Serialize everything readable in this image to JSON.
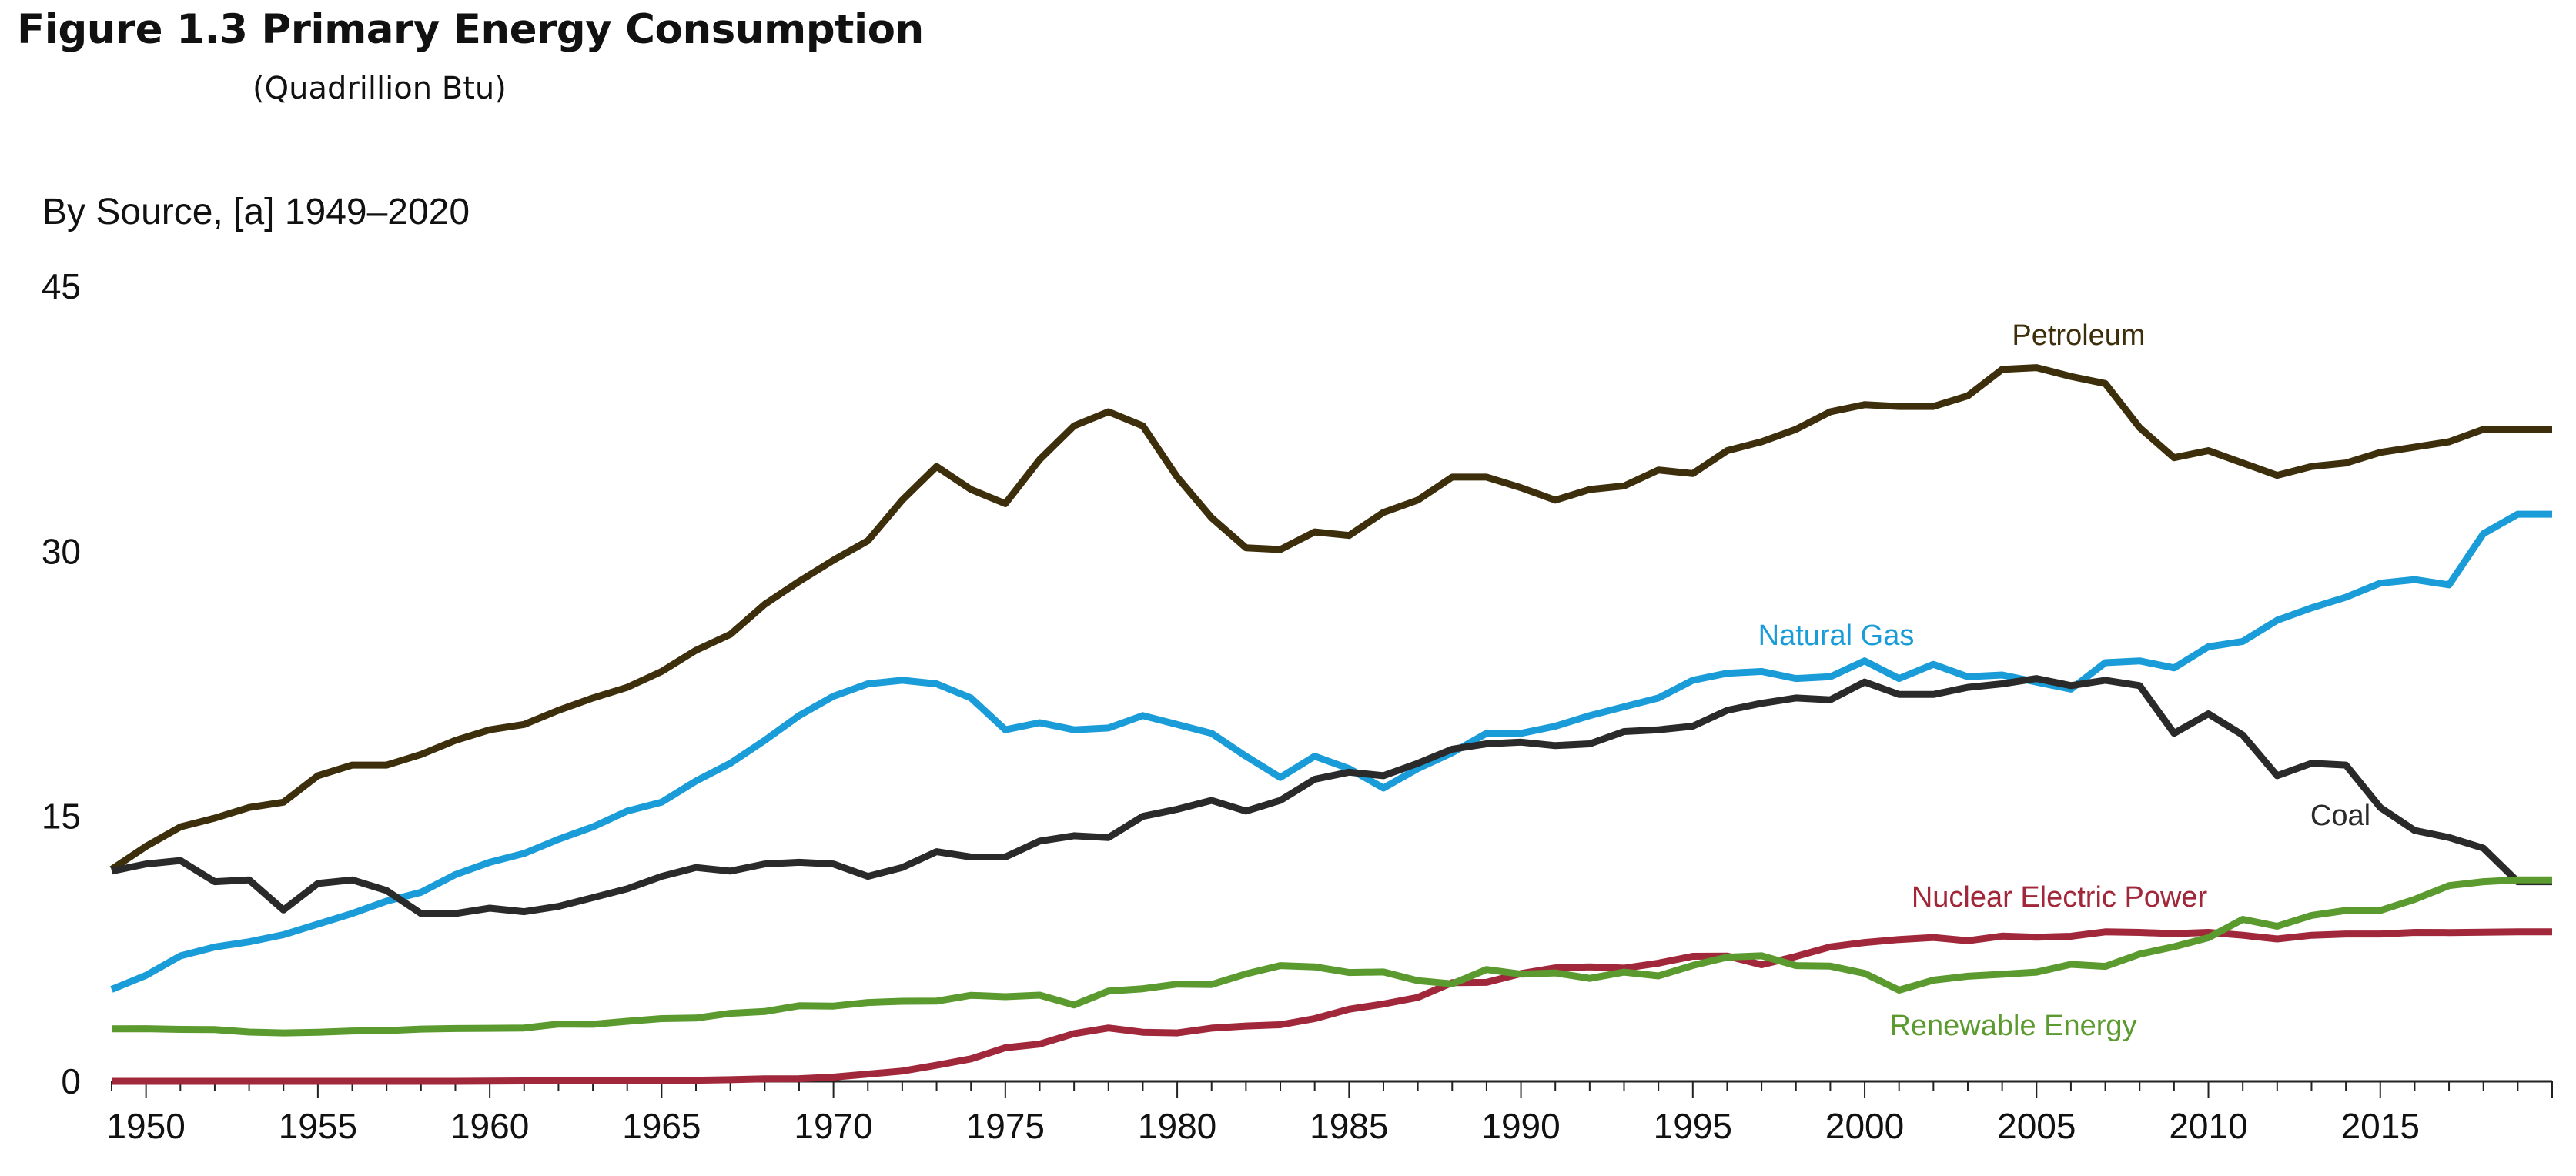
{
  "figure": {
    "title": "Figure 1.3  Primary Energy Consumption",
    "units": "(Quadrillion Btu)"
  },
  "chart_data": {
    "type": "line",
    "subtitle": "By Source, [a] 1949–2020",
    "x": [
      1949,
      1950,
      1951,
      1952,
      1953,
      1954,
      1955,
      1956,
      1957,
      1958,
      1959,
      1960,
      1961,
      1962,
      1963,
      1964,
      1965,
      1966,
      1967,
      1968,
      1969,
      1970,
      1971,
      1972,
      1973,
      1974,
      1975,
      1976,
      1977,
      1978,
      1979,
      1980,
      1981,
      1982,
      1983,
      1984,
      1985,
      1986,
      1987,
      1988,
      1989,
      1990,
      1991,
      1992,
      1993,
      1994,
      1995,
      1996,
      1997,
      1998,
      1999,
      2000,
      2001,
      2002,
      2003,
      2004,
      2005,
      2006,
      2007,
      2008,
      2009,
      2010,
      2011,
      2012,
      2013,
      2014,
      2015,
      2016,
      2017,
      2018,
      2019,
      2020
    ],
    "xlim": [
      1949,
      2020
    ],
    "ylim": [
      0,
      45
    ],
    "yticks": [
      "0",
      "15",
      "30",
      "45"
    ],
    "xticks": [
      "1950",
      "1955",
      "1960",
      "1965",
      "1970",
      "1975",
      "1980",
      "1985",
      "1990",
      "1995",
      "2000",
      "2005",
      "2010",
      "2015"
    ],
    "xtick_values": [
      1950,
      1955,
      1960,
      1965,
      1970,
      1975,
      1980,
      1985,
      1990,
      1995,
      2000,
      2005,
      2010,
      2015
    ],
    "ytick_values": [
      0,
      15,
      30,
      45
    ],
    "grid": false,
    "legend": "none (series labeled directly on chart)",
    "series": [
      {
        "name": "Petroleum",
        "color": "#3d2f0b",
        "values": [
          12.0,
          13.3,
          14.4,
          14.9,
          15.5,
          15.8,
          17.3,
          17.9,
          17.9,
          18.5,
          19.3,
          19.9,
          20.2,
          21.0,
          21.7,
          22.3,
          23.2,
          24.4,
          25.3,
          27.0,
          28.3,
          29.5,
          30.6,
          32.9,
          34.8,
          33.5,
          32.7,
          35.2,
          37.1,
          37.9,
          37.1,
          34.2,
          31.9,
          30.2,
          30.1,
          31.1,
          30.9,
          32.2,
          32.9,
          34.2,
          34.2,
          33.6,
          32.9,
          33.5,
          33.7,
          34.6,
          34.4,
          35.7,
          36.2,
          36.9,
          37.9,
          38.3,
          38.2,
          38.2,
          38.8,
          40.3,
          40.4,
          39.9,
          39.5,
          37.0,
          35.3,
          35.7,
          35.0,
          34.3,
          34.8,
          35.0,
          35.6,
          35.9,
          36.2,
          36.9,
          36.9,
          36.9
        ]
      },
      {
        "name": "Natural Gas",
        "color": "#1a9cd8",
        "values": [
          5.2,
          6.0,
          7.1,
          7.6,
          7.9,
          8.3,
          8.9,
          9.5,
          10.2,
          10.7,
          11.7,
          12.4,
          12.9,
          13.7,
          14.4,
          15.3,
          15.8,
          17.0,
          18.0,
          19.3,
          20.7,
          21.8,
          22.5,
          22.7,
          22.5,
          21.7,
          19.9,
          20.3,
          19.9,
          20.0,
          20.7,
          20.2,
          19.7,
          18.4,
          17.2,
          18.4,
          17.7,
          16.6,
          17.7,
          18.6,
          19.7,
          19.7,
          20.1,
          20.7,
          21.2,
          21.7,
          22.7,
          23.1,
          23.2,
          22.8,
          22.9,
          23.8,
          22.8,
          23.6,
          22.9,
          23.0,
          22.6,
          22.2,
          23.7,
          23.8,
          23.4,
          24.6,
          24.9,
          26.1,
          26.8,
          27.4,
          28.2,
          28.4,
          28.1,
          31.0,
          32.1,
          32.1
        ]
      },
      {
        "name": "Coal",
        "color": "#2a2a2a",
        "values": [
          11.9,
          12.3,
          12.5,
          11.3,
          11.4,
          9.7,
          11.2,
          11.4,
          10.8,
          9.5,
          9.5,
          9.8,
          9.6,
          9.9,
          10.4,
          10.9,
          11.6,
          12.1,
          11.9,
          12.3,
          12.4,
          12.3,
          11.6,
          12.1,
          13.0,
          12.7,
          12.7,
          13.6,
          13.9,
          13.8,
          15.0,
          15.4,
          15.9,
          15.3,
          15.9,
          17.1,
          17.5,
          17.3,
          18.0,
          18.8,
          19.1,
          19.2,
          19.0,
          19.1,
          19.8,
          19.9,
          20.1,
          21.0,
          21.4,
          21.7,
          21.6,
          22.6,
          21.9,
          21.9,
          22.3,
          22.5,
          22.8,
          22.4,
          22.7,
          22.4,
          19.7,
          20.8,
          19.6,
          17.3,
          18.0,
          17.9,
          15.5,
          14.2,
          13.8,
          13.2,
          11.3,
          11.3
        ]
      },
      {
        "name": "Nuclear Electric Power",
        "color": "#a0283a",
        "values": [
          0,
          0,
          0,
          0,
          0,
          0,
          0,
          0,
          0,
          0,
          0,
          0.01,
          0.02,
          0.03,
          0.04,
          0.04,
          0.04,
          0.06,
          0.09,
          0.14,
          0.15,
          0.24,
          0.41,
          0.58,
          0.91,
          1.27,
          1.9,
          2.11,
          2.7,
          3.02,
          2.78,
          2.74,
          3.01,
          3.13,
          3.2,
          3.55,
          4.08,
          4.38,
          4.75,
          5.59,
          5.6,
          6.1,
          6.42,
          6.48,
          6.41,
          6.69,
          7.08,
          7.09,
          6.6,
          7.07,
          7.61,
          7.86,
          8.03,
          8.14,
          7.96,
          8.22,
          8.16,
          8.21,
          8.46,
          8.43,
          8.36,
          8.43,
          8.27,
          8.06,
          8.27,
          8.34,
          8.34,
          8.43,
          8.42,
          8.44,
          8.46,
          8.46
        ]
      },
      {
        "name": "Renewable Energy",
        "color": "#5a9a2e",
        "values": [
          2.97,
          2.98,
          2.94,
          2.93,
          2.79,
          2.74,
          2.78,
          2.85,
          2.87,
          2.96,
          2.99,
          3.0,
          3.02,
          3.24,
          3.23,
          3.4,
          3.55,
          3.58,
          3.85,
          3.95,
          4.28,
          4.26,
          4.46,
          4.53,
          4.54,
          4.87,
          4.79,
          4.88,
          4.32,
          5.11,
          5.24,
          5.5,
          5.48,
          6.08,
          6.55,
          6.48,
          6.16,
          6.19,
          5.7,
          5.52,
          6.33,
          6.07,
          6.14,
          5.83,
          6.18,
          5.97,
          6.56,
          7.03,
          7.11,
          6.55,
          6.52,
          6.11,
          5.16,
          5.73,
          5.95,
          6.06,
          6.18,
          6.62,
          6.51,
          7.2,
          7.62,
          8.13,
          9.17,
          8.78,
          9.39,
          9.67,
          9.67,
          10.3,
          11.08,
          11.3,
          11.4,
          11.4
        ]
      }
    ],
    "labels": [
      {
        "series": "Petroleum",
        "text": "Petroleum"
      },
      {
        "series": "Natural Gas",
        "text": "Natural Gas"
      },
      {
        "series": "Coal",
        "text": "Coal"
      },
      {
        "series": "Nuclear Electric Power",
        "text": "Nuclear Electric Power"
      },
      {
        "series": "Renewable Energy",
        "text": "Renewable Energy"
      }
    ]
  }
}
